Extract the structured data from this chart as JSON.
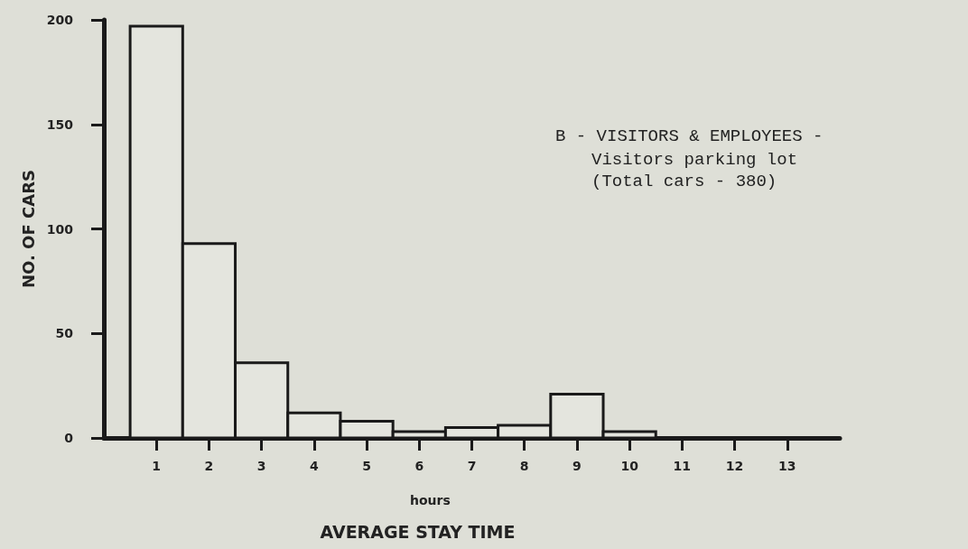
{
  "chart_data": {
    "type": "histogram",
    "title": "B - VISITORS & EMPLOYEES -",
    "subtitle": "Visitors parking lot\n(Total cars - 380)",
    "xlabel": "AVERAGE STAY TIME",
    "ylabel": "NO. OF CARS",
    "annotations": [
      "hours"
    ],
    "bins": [
      0.5,
      1.5,
      2.5,
      3.5,
      4.5,
      5.5,
      6.5,
      7.5,
      8.5,
      9.5,
      10.5
    ],
    "values": [
      197,
      93,
      36,
      12,
      8,
      3,
      5,
      6,
      21,
      3
    ],
    "color": "#1a1a1a",
    "xlim": [
      0,
      14
    ],
    "xticks": [
      1,
      2,
      3,
      4,
      5,
      6,
      7,
      8,
      9,
      10,
      11,
      12,
      13
    ],
    "ylim": [
      0,
      200
    ],
    "yticks": [
      0,
      50,
      100,
      150,
      200
    ],
    "grid": false
  }
}
